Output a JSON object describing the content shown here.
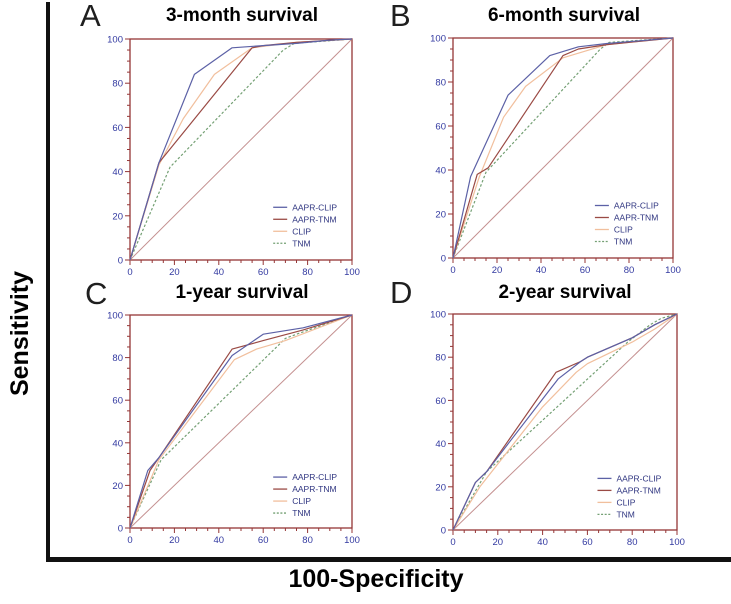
{
  "figure": {
    "y_axis_label": "Sensitivity",
    "x_axis_label": "100-Specificity"
  },
  "colors": {
    "aapr_clip": "#5c61a6",
    "aapr_tnm": "#9a4a44",
    "clip": "#f1bf9d",
    "tnm": "#74a074",
    "reference": "#c49090",
    "frame": "#943636",
    "tick_label": "#3239a0",
    "legend_text": "#2f3580"
  },
  "axes": {
    "x_min": 0,
    "x_max": 100,
    "y_min": 0,
    "y_max": 100,
    "major_ticks": [
      0,
      20,
      40,
      60,
      80,
      100
    ],
    "minor_step": 5,
    "grid": false
  },
  "legend_labels": [
    "AAPR-CLIP",
    "AAPR-TNM",
    "CLIP",
    "TNM"
  ],
  "chart_data": [
    {
      "type": "line",
      "letter": "A",
      "title": "3-month survival",
      "xlabel": "100-Specificity",
      "ylabel": "Sensitivity",
      "xlim": [
        0,
        100
      ],
      "ylim": [
        0,
        100
      ],
      "legend_position": "bottom-right",
      "series": [
        {
          "name": "AAPR-CLIP",
          "color": "aapr_clip",
          "dash": false,
          "points": [
            [
              0,
              0
            ],
            [
              13,
              44
            ],
            [
              29,
              84
            ],
            [
              46,
              96
            ],
            [
              60,
              97
            ],
            [
              75,
              98
            ],
            [
              90,
              99.5
            ],
            [
              100,
              100
            ]
          ]
        },
        {
          "name": "AAPR-TNM",
          "color": "aapr_tnm",
          "dash": false,
          "points": [
            [
              0,
              0
            ],
            [
              13,
              44
            ],
            [
              55,
              96
            ],
            [
              60,
              97
            ],
            [
              75,
              98.5
            ],
            [
              100,
              100
            ]
          ]
        },
        {
          "name": "CLIP",
          "color": "clip",
          "dash": false,
          "points": [
            [
              0,
              0
            ],
            [
              13,
              43
            ],
            [
              24,
              64
            ],
            [
              38,
              84
            ],
            [
              55,
              96
            ],
            [
              75,
              98.5
            ],
            [
              100,
              100
            ]
          ]
        },
        {
          "name": "TNM",
          "color": "tnm",
          "dash": true,
          "points": [
            [
              0,
              0
            ],
            [
              18,
              42
            ],
            [
              69,
              95
            ],
            [
              74,
              98
            ],
            [
              100,
              100
            ]
          ]
        }
      ],
      "reference": [
        [
          0,
          0
        ],
        [
          100,
          100
        ]
      ]
    },
    {
      "type": "line",
      "letter": "B",
      "title": "6-month survival",
      "xlabel": "100-Specificity",
      "ylabel": "Sensitivity",
      "xlim": [
        0,
        100
      ],
      "ylim": [
        0,
        100
      ],
      "legend_position": "bottom-right",
      "series": [
        {
          "name": "AAPR-CLIP",
          "color": "aapr_clip",
          "dash": false,
          "points": [
            [
              0,
              0
            ],
            [
              8,
              37
            ],
            [
              25,
              74
            ],
            [
              44,
              92
            ],
            [
              57,
              96
            ],
            [
              70,
              97.5
            ],
            [
              100,
              100
            ]
          ]
        },
        {
          "name": "AAPR-TNM",
          "color": "aapr_tnm",
          "dash": false,
          "points": [
            [
              0,
              0
            ],
            [
              11,
              38
            ],
            [
              16,
              41
            ],
            [
              50,
              92
            ],
            [
              57,
              95
            ],
            [
              70,
              97
            ],
            [
              100,
              100
            ]
          ]
        },
        {
          "name": "CLIP",
          "color": "clip",
          "dash": false,
          "points": [
            [
              0,
              0
            ],
            [
              12,
              37
            ],
            [
              23,
              64
            ],
            [
              33,
              78
            ],
            [
              50,
              91
            ],
            [
              70,
              97
            ],
            [
              100,
              100
            ]
          ]
        },
        {
          "name": "TNM",
          "color": "tnm",
          "dash": true,
          "points": [
            [
              0,
              0
            ],
            [
              15,
              39
            ],
            [
              67,
              95
            ],
            [
              71,
              98
            ],
            [
              100,
              100
            ]
          ]
        }
      ],
      "reference": [
        [
          0,
          0
        ],
        [
          100,
          100
        ]
      ]
    },
    {
      "type": "line",
      "letter": "C",
      "title": "1-year survival",
      "xlabel": "100-Specificity",
      "ylabel": "Sensitivity",
      "xlim": [
        0,
        100
      ],
      "ylim": [
        0,
        100
      ],
      "legend_position": "bottom-right",
      "series": [
        {
          "name": "AAPR-CLIP",
          "color": "aapr_clip",
          "dash": false,
          "points": [
            [
              0,
              0
            ],
            [
              8,
              27
            ],
            [
              13,
              33
            ],
            [
              46,
              81
            ],
            [
              60,
              91
            ],
            [
              78,
              94
            ],
            [
              100,
              100
            ]
          ]
        },
        {
          "name": "AAPR-TNM",
          "color": "aapr_tnm",
          "dash": false,
          "points": [
            [
              0,
              0
            ],
            [
              9,
              27
            ],
            [
              13,
              33
            ],
            [
              46,
              84
            ],
            [
              60,
              88
            ],
            [
              78,
              93
            ],
            [
              100,
              100
            ]
          ]
        },
        {
          "name": "CLIP",
          "color": "clip",
          "dash": false,
          "points": [
            [
              0,
              0
            ],
            [
              13,
              32
            ],
            [
              47,
              79
            ],
            [
              57,
              84
            ],
            [
              70,
              88
            ],
            [
              100,
              100
            ]
          ]
        },
        {
          "name": "TNM",
          "color": "tnm",
          "dash": true,
          "points": [
            [
              0,
              0
            ],
            [
              14,
              32
            ],
            [
              70,
              89
            ],
            [
              75,
              91
            ],
            [
              100,
              100
            ]
          ]
        }
      ],
      "reference": [
        [
          0,
          0
        ],
        [
          100,
          100
        ]
      ]
    },
    {
      "type": "line",
      "letter": "D",
      "title": "2-year survival",
      "xlabel": "100-Specificity",
      "ylabel": "Sensitivity",
      "xlim": [
        0,
        100
      ],
      "ylim": [
        0,
        100
      ],
      "legend_position": "bottom-right",
      "series": [
        {
          "name": "AAPR-CLIP",
          "color": "aapr_clip",
          "dash": false,
          "points": [
            [
              0,
              0
            ],
            [
              10,
              22
            ],
            [
              15,
              27
            ],
            [
              44,
              66
            ],
            [
              47,
              70
            ],
            [
              57,
              78
            ],
            [
              60,
              80
            ],
            [
              80,
              89
            ],
            [
              90,
              95
            ],
            [
              100,
              100
            ]
          ]
        },
        {
          "name": "AAPR-TNM",
          "color": "aapr_tnm",
          "dash": false,
          "points": [
            [
              0,
              0
            ],
            [
              10,
              22
            ],
            [
              15,
              27
            ],
            [
              46,
              73
            ],
            [
              57,
              78
            ],
            [
              60,
              80
            ],
            [
              80,
              89
            ],
            [
              90,
              95
            ],
            [
              100,
              100
            ]
          ]
        },
        {
          "name": "CLIP",
          "color": "clip",
          "dash": false,
          "points": [
            [
              0,
              0
            ],
            [
              12,
              20
            ],
            [
              40,
              57
            ],
            [
              55,
              73
            ],
            [
              60,
              77
            ],
            [
              80,
              87
            ],
            [
              90,
              93
            ],
            [
              100,
              100
            ]
          ]
        },
        {
          "name": "TNM",
          "color": "tnm",
          "dash": true,
          "points": [
            [
              0,
              0
            ],
            [
              15,
              27
            ],
            [
              78,
              87
            ],
            [
              88,
              95
            ],
            [
              93,
              98
            ],
            [
              100,
              100
            ]
          ]
        }
      ],
      "reference": [
        [
          0,
          0
        ],
        [
          100,
          100
        ]
      ]
    }
  ]
}
